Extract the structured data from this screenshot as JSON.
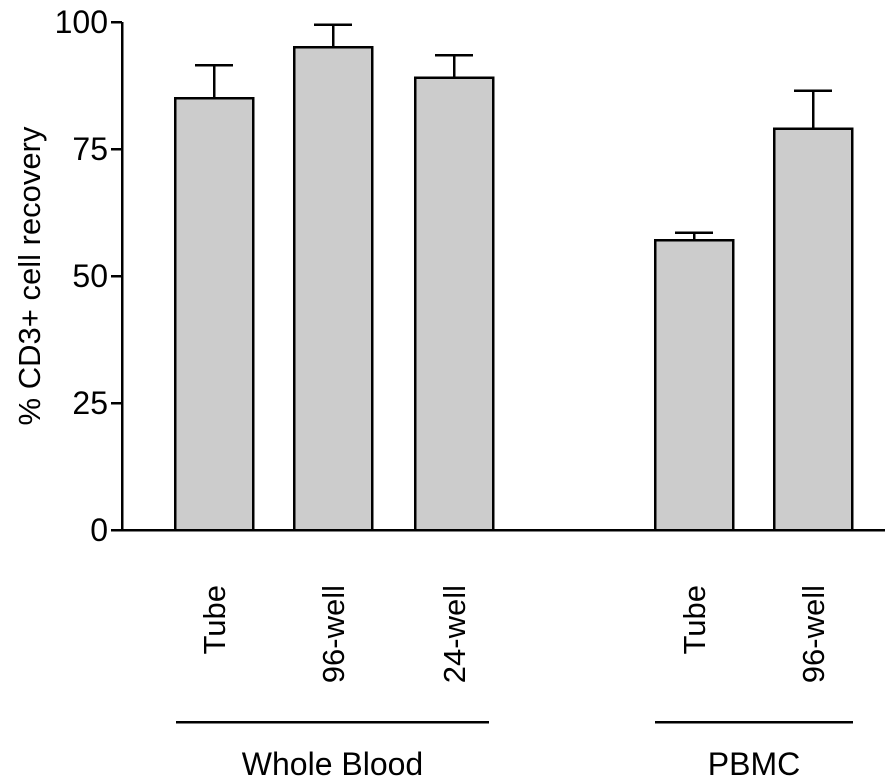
{
  "chart_data": {
    "type": "bar",
    "title": "",
    "xlabel": "",
    "ylabel": "% CD3+ cell recovery",
    "ylim": [
      0,
      100
    ],
    "yticks": [
      0,
      25,
      50,
      75,
      100
    ],
    "ytick_labels": [
      "0",
      "25",
      "50",
      "75",
      "100"
    ],
    "categories": [
      "Tube",
      "96-well",
      "24-well",
      "Tube",
      "96-well"
    ],
    "values": [
      85,
      95,
      89,
      57,
      79
    ],
    "errors": [
      6.5,
      4.5,
      4.5,
      1.5,
      7.5
    ],
    "groups": [
      {
        "label": "Whole Blood",
        "categories": [
          0,
          1,
          2
        ]
      },
      {
        "label": "PBMC",
        "categories": [
          3,
          4
        ]
      }
    ],
    "grid": false,
    "legend": "none",
    "colors": {
      "bar_fill": "#cccccc",
      "bar_stroke": "#000000",
      "axis": "#000000",
      "text": "#000000"
    }
  }
}
